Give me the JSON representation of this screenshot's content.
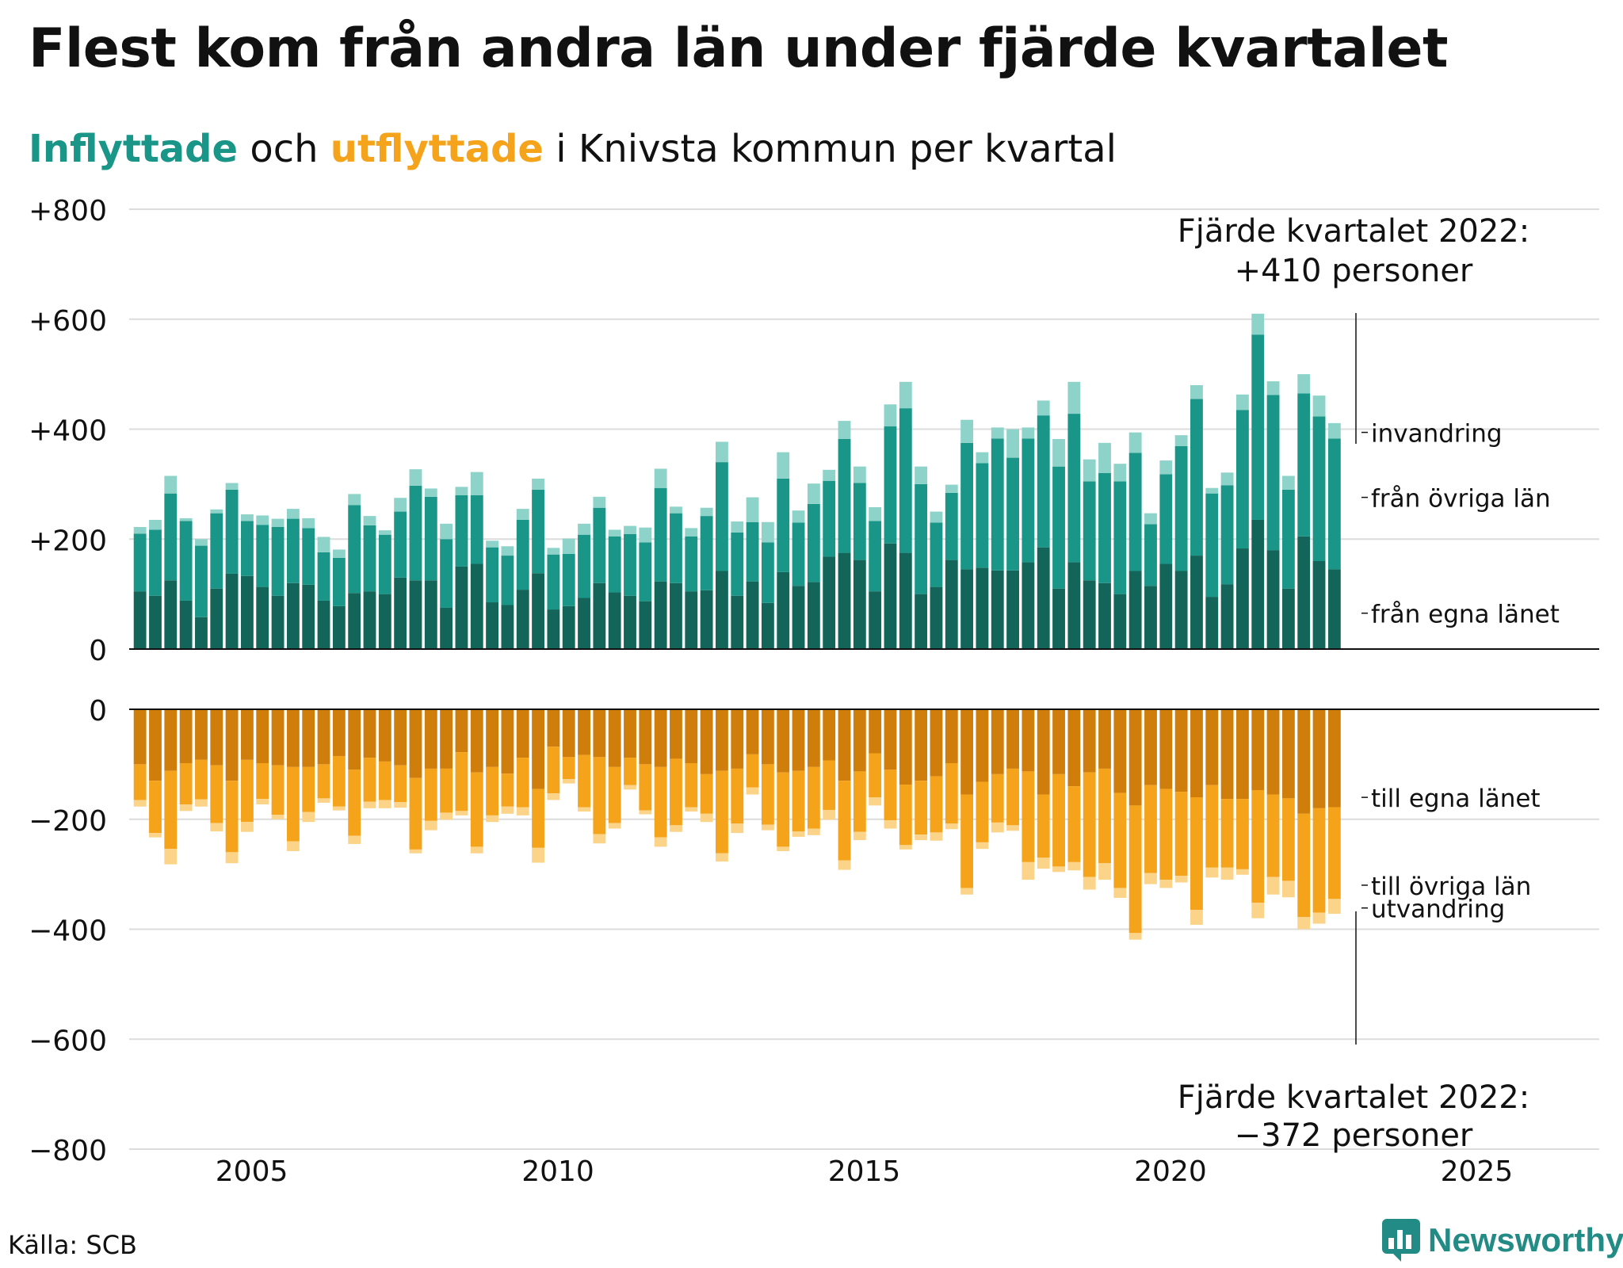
{
  "title": "Flest kom från andra län under fjärde kvartalet",
  "subtitle": {
    "in_label": "Inflyttade",
    "mid": " och ",
    "out_label": "utflyttade",
    "rest": " i Knivsta kommun per kvartal"
  },
  "source": "Källa: SCB",
  "brand": "Newsworthy",
  "colors": {
    "in_egna": "#136559",
    "in_ovriga": "#1a9688",
    "in_inv": "#8dd3c9",
    "out_egna": "#cf7e0c",
    "out_ovriga": "#f5a31a",
    "out_utv": "#fbd48a",
    "grid": "#dcdcdc"
  },
  "chart_data": {
    "type": "bar",
    "stacked": true,
    "x_start": "2003 Q1",
    "y_top_ticks": [
      "+800",
      "+600",
      "+400",
      "+200",
      "0"
    ],
    "y_bottom_ticks": [
      "0",
      "−200",
      "−400",
      "−600",
      "−800"
    ],
    "x_ticks": [
      "2005",
      "2010",
      "2015",
      "2020",
      "2025"
    ],
    "ylim_in": [
      0,
      800
    ],
    "ylim_out": [
      -800,
      0
    ],
    "xlim": [
      2003.0,
      2027.0
    ],
    "grid": true,
    "series": [
      {
        "name": "från egna länet",
        "group": "in",
        "values": [
          105,
          97,
          125,
          88,
          58,
          110,
          137,
          133,
          113,
          97,
          120,
          117,
          88,
          78,
          102,
          105,
          100,
          130,
          125,
          125,
          75,
          150,
          155,
          85,
          80,
          108,
          138,
          72,
          78,
          93,
          120,
          103,
          97,
          87,
          123,
          120,
          105,
          107,
          142,
          97,
          123,
          84,
          140,
          115,
          122,
          168,
          175,
          162,
          105,
          192,
          175,
          100,
          113,
          162,
          145,
          148,
          143,
          143,
          158,
          185,
          110,
          158,
          125,
          120,
          100,
          142,
          115,
          155,
          142,
          170,
          95,
          118,
          183,
          235,
          180,
          110,
          205,
          160,
          145
        ]
      },
      {
        "name": "från övriga län",
        "group": "in",
        "values": [
          105,
          120,
          158,
          145,
          130,
          137,
          153,
          100,
          113,
          125,
          117,
          103,
          88,
          88,
          160,
          120,
          108,
          120,
          172,
          152,
          125,
          130,
          125,
          100,
          90,
          127,
          152,
          100,
          95,
          115,
          137,
          102,
          112,
          107,
          170,
          127,
          100,
          135,
          198,
          115,
          108,
          110,
          170,
          115,
          142,
          138,
          207,
          140,
          128,
          213,
          263,
          200,
          117,
          122,
          230,
          190,
          240,
          205,
          225,
          240,
          222,
          270,
          180,
          200,
          205,
          215,
          112,
          163,
          227,
          285,
          188,
          180,
          252,
          337,
          282,
          180,
          260,
          263,
          238
        ]
      },
      {
        "name": "invandring",
        "group": "in",
        "values": [
          12,
          18,
          32,
          5,
          12,
          7,
          12,
          12,
          17,
          15,
          18,
          18,
          28,
          15,
          20,
          17,
          8,
          25,
          30,
          15,
          28,
          15,
          42,
          12,
          17,
          20,
          20,
          12,
          28,
          20,
          20,
          12,
          15,
          27,
          35,
          12,
          15,
          15,
          37,
          20,
          45,
          37,
          48,
          22,
          37,
          20,
          33,
          30,
          25,
          40,
          48,
          32,
          20,
          15,
          42,
          20,
          20,
          52,
          20,
          27,
          50,
          58,
          40,
          55,
          32,
          37,
          20,
          25,
          20,
          25,
          10,
          23,
          28,
          38,
          25,
          25,
          35,
          38,
          28
        ]
      },
      {
        "name": "till egna länet",
        "group": "out",
        "values": [
          100,
          130,
          112,
          98,
          92,
          102,
          130,
          92,
          98,
          102,
          105,
          105,
          100,
          85,
          110,
          88,
          95,
          102,
          125,
          108,
          108,
          78,
          115,
          105,
          117,
          88,
          145,
          68,
          87,
          83,
          87,
          105,
          88,
          100,
          105,
          90,
          98,
          118,
          112,
          108,
          82,
          100,
          115,
          112,
          105,
          93,
          130,
          113,
          80,
          110,
          137,
          130,
          122,
          98,
          155,
          132,
          118,
          108,
          113,
          155,
          118,
          140,
          115,
          108,
          152,
          175,
          138,
          145,
          150,
          160,
          138,
          163,
          163,
          147,
          155,
          162,
          190,
          180,
          178
        ]
      },
      {
        "name": "till övriga län",
        "group": "out",
        "values": [
          65,
          95,
          142,
          75,
          72,
          105,
          130,
          113,
          65,
          90,
          135,
          82,
          62,
          92,
          120,
          80,
          70,
          67,
          130,
          95,
          80,
          107,
          135,
          88,
          60,
          90,
          107,
          85,
          40,
          95,
          140,
          102,
          50,
          84,
          128,
          121,
          80,
          72,
          150,
          100,
          60,
          110,
          135,
          110,
          112,
          90,
          145,
          110,
          80,
          92,
          110,
          98,
          102,
          110,
          170,
          110,
          88,
          103,
          165,
          115,
          168,
          138,
          190,
          172,
          173,
          232,
          160,
          165,
          153,
          205,
          150,
          125,
          128,
          205,
          150,
          150,
          188,
          190,
          167
        ]
      },
      {
        "name": "utvandring",
        "group": "out",
        "values": [
          12,
          8,
          28,
          12,
          13,
          15,
          20,
          18,
          10,
          8,
          18,
          18,
          8,
          7,
          15,
          12,
          15,
          10,
          7,
          17,
          13,
          8,
          12,
          12,
          13,
          15,
          27,
          12,
          8,
          8,
          17,
          10,
          8,
          7,
          17,
          12,
          8,
          15,
          15,
          17,
          13,
          10,
          8,
          10,
          12,
          18,
          17,
          15,
          15,
          15,
          8,
          10,
          15,
          10,
          12,
          12,
          18,
          10,
          32,
          20,
          10,
          15,
          23,
          30,
          18,
          12,
          20,
          15,
          12,
          27,
          18,
          22,
          10,
          28,
          32,
          30,
          22,
          20,
          27
        ]
      }
    ],
    "series_labels": {
      "in": [
        "invandring",
        "från övriga län",
        "från egna länet"
      ],
      "out": [
        "till egna länet",
        "till övriga län",
        "utvandring"
      ]
    },
    "annotations": {
      "top": [
        "Fjärde kvartalet 2022:",
        "+410 personer"
      ],
      "bottom": [
        "Fjärde kvartalet 2022:",
        "−372 personer"
      ]
    }
  }
}
